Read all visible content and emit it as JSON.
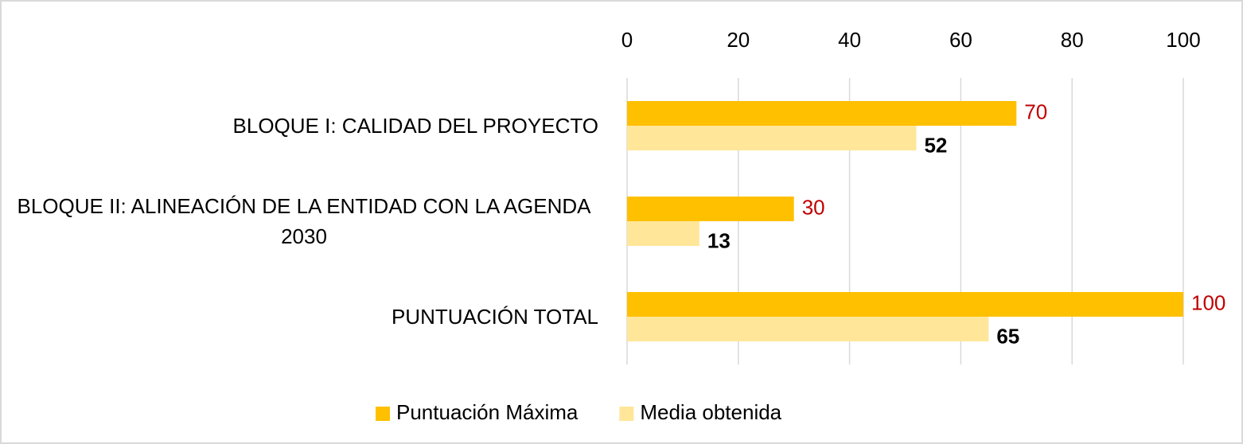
{
  "chart_data": {
    "type": "hbar",
    "categories": [
      "BLOQUE I: CALIDAD DEL PROYECTO",
      "BLOQUE II: ALINEACIÓN DE LA ENTIDAD CON LA AGENDA 2030",
      "PUNTUACIÓN TOTAL"
    ],
    "series": [
      {
        "name": "Puntuación Máxima",
        "color": "#FFC000",
        "label_color": "#C00000",
        "values": [
          70,
          30,
          100
        ]
      },
      {
        "name": "Media obtenida",
        "color": "#FFE699",
        "label_color": "#000000",
        "values": [
          52,
          13,
          65
        ]
      }
    ],
    "xlim": [
      0,
      100
    ],
    "xticks": [
      0,
      20,
      40,
      60,
      80,
      100
    ],
    "grid": true,
    "legend": "bottom"
  }
}
